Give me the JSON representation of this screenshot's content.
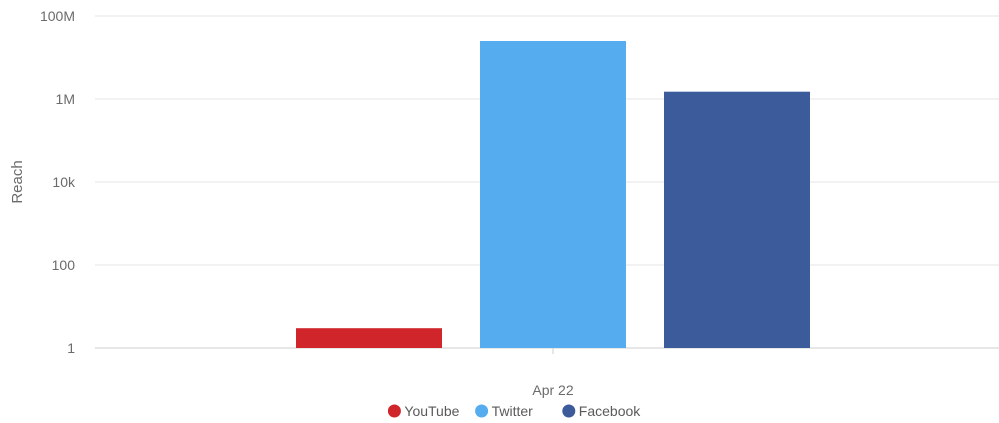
{
  "chart_data": {
    "type": "bar",
    "title": "",
    "xlabel": "",
    "ylabel": "Reach",
    "yscale": "log",
    "ylim": [
      1,
      100000000
    ],
    "y_ticks": [
      {
        "value": 1,
        "label": "1"
      },
      {
        "value": 100,
        "label": "100"
      },
      {
        "value": 10000,
        "label": "10k"
      },
      {
        "value": 1000000,
        "label": "1M"
      },
      {
        "value": 100000000,
        "label": "100M"
      }
    ],
    "categories": [
      "Apr 22"
    ],
    "series": [
      {
        "name": "YouTube",
        "color": "#d0252a",
        "values": [
          3
        ]
      },
      {
        "name": "Twitter",
        "color": "#55acee",
        "values": [
          25000000
        ]
      },
      {
        "name": "Facebook",
        "color": "#3b5b9b",
        "values": [
          1500000
        ]
      }
    ],
    "grid": true,
    "legend": "bottom-center"
  }
}
